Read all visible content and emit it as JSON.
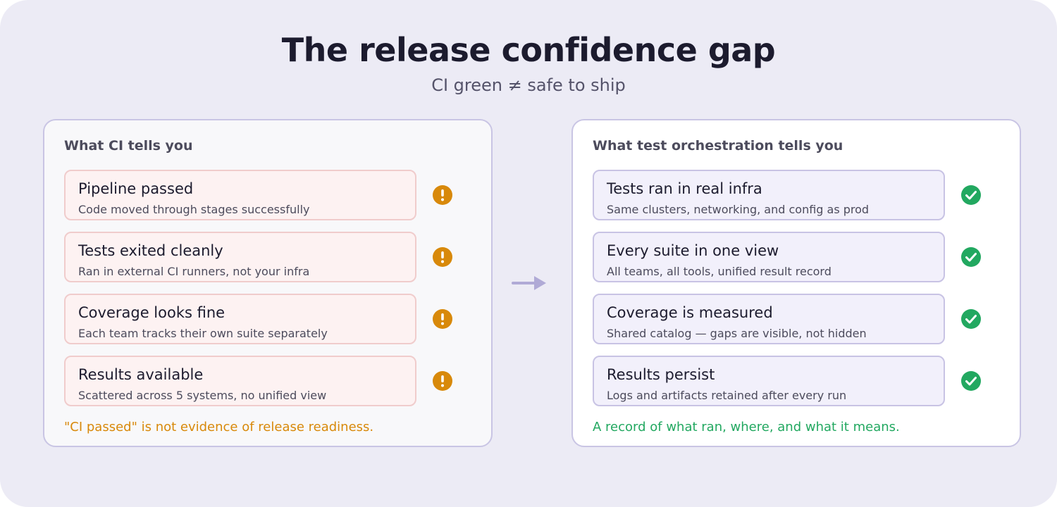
{
  "title": "The release confidence gap",
  "subtitle": "CI green ≠ safe to ship",
  "colors": {
    "warning": "#d8890a",
    "success": "#22a860",
    "arrow": "#b0aad6"
  },
  "left_panel": {
    "heading": "What CI tells you",
    "status_icon": "warning-icon",
    "items": [
      {
        "title": "Pipeline passed",
        "description": "Code moved through stages successfully"
      },
      {
        "title": "Tests exited cleanly",
        "description": "Ran in external CI runners, not your infra"
      },
      {
        "title": "Coverage looks fine",
        "description": "Each team tracks their own suite separately"
      },
      {
        "title": "Results available",
        "description": "Scattered across 5 systems, no unified view"
      }
    ],
    "footer": "\"CI passed\" is not evidence of release readiness."
  },
  "right_panel": {
    "heading": "What test orchestration tells you",
    "status_icon": "check-icon",
    "items": [
      {
        "title": "Tests ran in real infra",
        "description": "Same clusters, networking, and config as prod"
      },
      {
        "title": "Every suite in one view",
        "description": "All teams, all tools, unified result record"
      },
      {
        "title": "Coverage is measured",
        "description": "Shared catalog — gaps are visible, not hidden"
      },
      {
        "title": "Results persist",
        "description": "Logs and artifacts retained after every run"
      }
    ],
    "footer": "A record of what ran, where, and what it means."
  }
}
